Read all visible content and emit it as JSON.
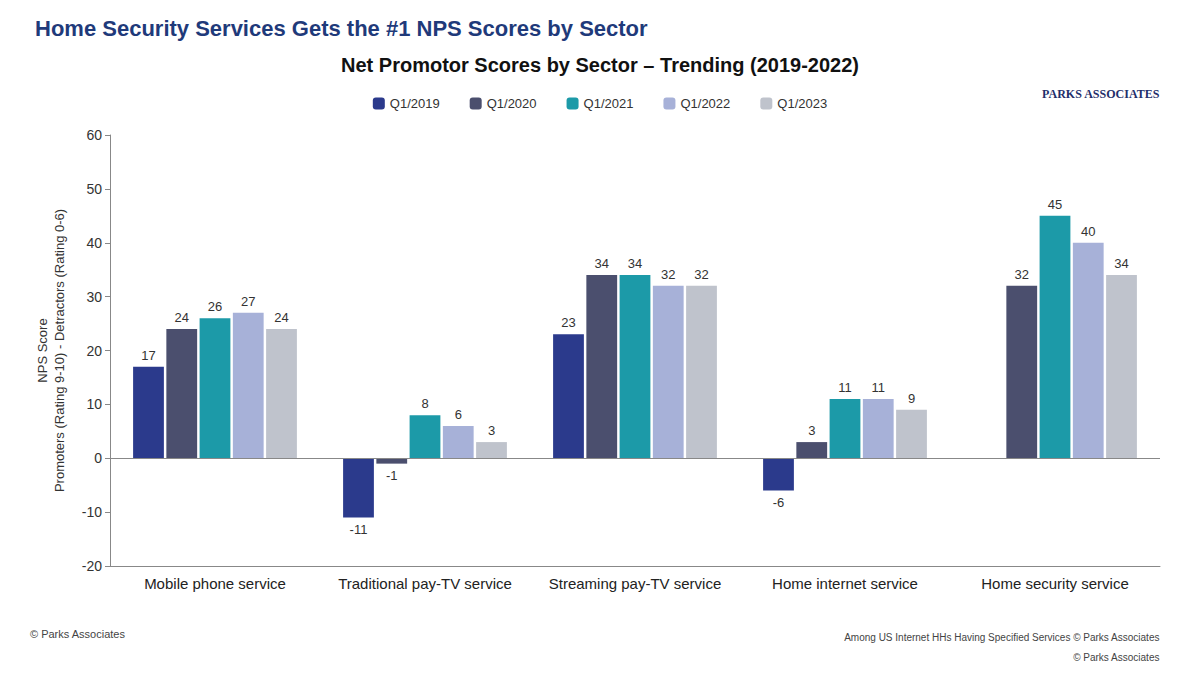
{
  "chart_data": {
    "type": "bar",
    "title": "Home Security Services Gets the #1 NPS Scores by Sector",
    "subtitle": "Net Promotor Scores by Sector – Trending (2019-2022)",
    "ylabel": [
      "NPS Score",
      "Promoters (Rating 9-10) - Detractors (Rating 0-6)"
    ],
    "categories": [
      "Mobile phone service",
      "Traditional pay-TV service",
      "Streaming pay-TV service",
      "Home internet service",
      "Home security service"
    ],
    "series": [
      {
        "name": "Q1/2019",
        "color": "#2b3a8c",
        "values": [
          17,
          -11,
          23,
          -6,
          null
        ]
      },
      {
        "name": "Q1/2020",
        "color": "#4b4f6e",
        "values": [
          24,
          -1,
          34,
          3,
          32
        ]
      },
      {
        "name": "Q1/2021",
        "color": "#1c9aa8",
        "values": [
          26,
          8,
          34,
          11,
          45
        ]
      },
      {
        "name": "Q1/2022",
        "color": "#a7b1d8",
        "values": [
          27,
          6,
          32,
          11,
          40
        ]
      },
      {
        "name": "Q1/2023",
        "color": "#bfc3cc",
        "values": [
          24,
          3,
          32,
          9,
          34
        ]
      }
    ],
    "ylim": [
      -20,
      60
    ],
    "yticks": [
      -20,
      -10,
      0,
      10,
      20,
      30,
      40,
      50,
      60
    ],
    "grid": false,
    "legend": "top",
    "data_labels": true,
    "annotations": [
      "PARKS ASSOCIATES",
      "© Parks Associates",
      "Among US Internet HHs Having Specified Services © Parks Associates",
      "© Parks Associates"
    ]
  }
}
